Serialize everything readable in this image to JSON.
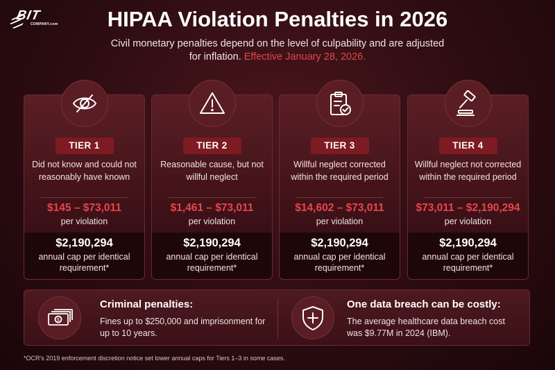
{
  "logo": {
    "text": "BIT",
    "sub": "COMPANY.com",
    "icon": "bit-company-logo"
  },
  "header": {
    "title": "HIPAA Violation Penalties in 2026",
    "subtitle": "Civil monetary penalties depend on the level of culpability and are adjusted for inflation.",
    "effective": "Effective January 28, 2026."
  },
  "tiers": [
    {
      "icon": "eye-slash-icon",
      "label": "TIER 1",
      "description": "Did not know and could not reasonably have known",
      "range": "$145 – $73,011",
      "per": "per violation",
      "cap": "$2,190,294",
      "cap_text": "annual cap per identical requirement*"
    },
    {
      "icon": "warning-triangle-icon",
      "label": "TIER 2",
      "description": "Reasonable cause, but not willful neglect",
      "range": "$1,461 – $73,011",
      "per": "per violation",
      "cap": "$2,190,294",
      "cap_text": "annual cap per identical requirement*"
    },
    {
      "icon": "clipboard-check-icon",
      "label": "TIER 3",
      "description": "Willful neglect corrected within the required period",
      "range": "$14,602 – $73,011",
      "per": "per violation",
      "cap": "$2,190,294",
      "cap_text": "annual cap per identical requirement*"
    },
    {
      "icon": "gavel-icon",
      "label": "TIER 4",
      "description": "Willful neglect not corrected within the required period",
      "range": "$73,011 – $2,190,294",
      "per": "per violation",
      "cap": "$2,190,294",
      "cap_text": "annual cap per identical requirement*"
    }
  ],
  "criminal": {
    "icon": "money-stack-icon",
    "heading": "Criminal penalties:",
    "text": "Fines up to $250,000 and imprisonment for up to 10 years."
  },
  "breach": {
    "icon": "shield-plus-icon",
    "heading": "One data breach can be costly:",
    "text": "The average healthcare data breach cost was $9.77M in 2024 (IBM)."
  },
  "footnote": "*OCR's 2019 enforcement discretion notice set lower annual caps for Tiers 1–3 in some cases.",
  "colors": {
    "accent": "#e8454b",
    "tier_label_bg": "#7e1a22",
    "background": "#2c0c11"
  }
}
